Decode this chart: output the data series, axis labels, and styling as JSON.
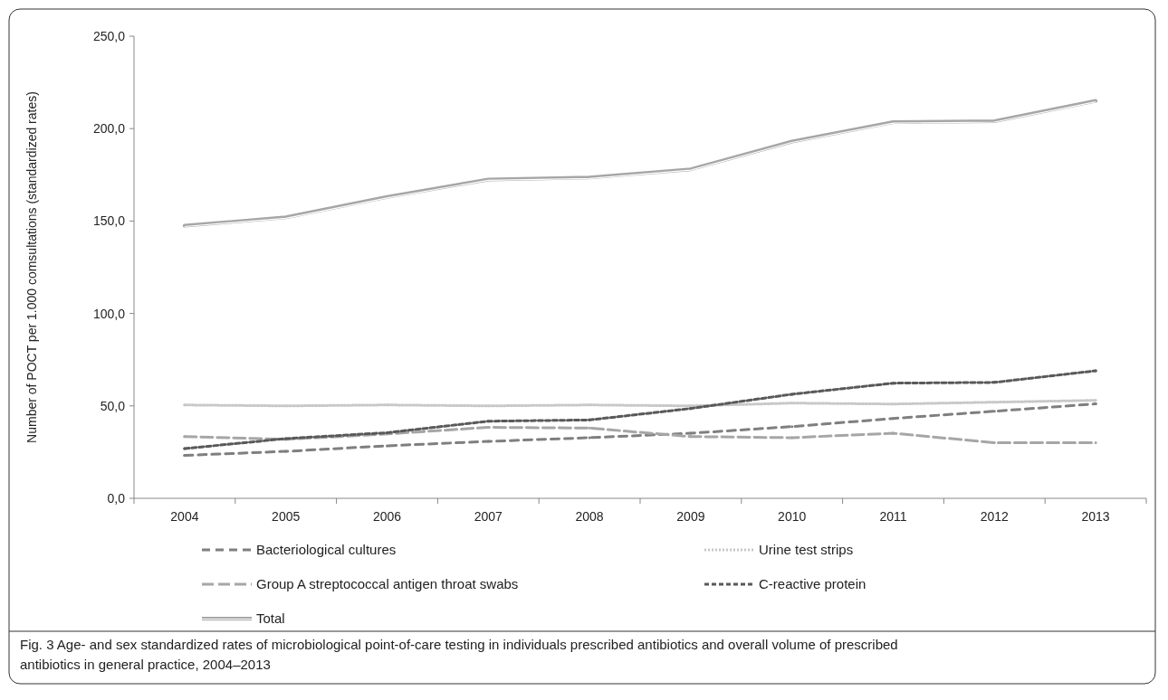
{
  "chart_data": {
    "type": "line",
    "ylabel": "Number of POCT per 1.000 comsultations  (standardized rates)",
    "categories": [
      "2004",
      "2005",
      "2006",
      "2007",
      "2008",
      "2009",
      "2010",
      "2011",
      "2012",
      "2013"
    ],
    "ylim": [
      0,
      250
    ],
    "yticks": [
      {
        "value": 0,
        "label": "0,0"
      },
      {
        "value": 50,
        "label": "50,0"
      },
      {
        "value": 100,
        "label": "100,0"
      },
      {
        "value": 150,
        "label": "150,0"
      },
      {
        "value": 200,
        "label": "200,0"
      },
      {
        "value": 250,
        "label": "250,0"
      }
    ],
    "grid": false,
    "legend": "bottom",
    "marker": "none",
    "series": [
      {
        "name": "Bacteriological cultures",
        "color": "#7f7f7f",
        "line_style": "dashed",
        "values": [
          23.2,
          25.4,
          28.4,
          30.8,
          32.8,
          35.2,
          38.8,
          43.2,
          47.1,
          51.1
        ]
      },
      {
        "name": "Urine test strips",
        "color": "#c8c8c8",
        "line_style": "dotted",
        "values": [
          50.5,
          50,
          50.5,
          50,
          50.5,
          50,
          51.5,
          51,
          52,
          53
        ]
      },
      {
        "name": "Group A streptococcal antigen throat swabs",
        "color": "#a6a6a6",
        "line_style": "dashed",
        "values": [
          33.4,
          31.9,
          34.8,
          38.4,
          38,
          33.4,
          32.8,
          35.2,
          30.1,
          30.1
        ]
      },
      {
        "name": "C-reactive protein",
        "color": "#595959",
        "line_style": "dashed",
        "values": [
          26.9,
          32.3,
          35.5,
          41.7,
          42.4,
          48.6,
          56.3,
          62.3,
          62.7,
          69
        ]
      },
      {
        "name": "Total",
        "color": "#a6a6a6",
        "line_style": "solid",
        "values": [
          147.5,
          152,
          163,
          172.5,
          173.5,
          178,
          193,
          203.5,
          204,
          215
        ]
      }
    ],
    "annotations": [
      "Fig. 3 Age- and sex standardized rates of microbiological point-of-care testing in individuals prescribed antibiotics and overall volume of prescribed antibiotics in general practice, 2004–2013"
    ]
  }
}
